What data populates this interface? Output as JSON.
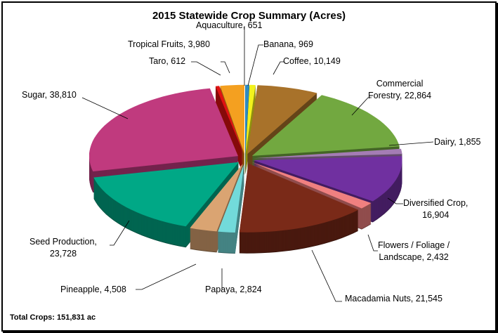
{
  "chart_data": {
    "type": "pie",
    "title": "2015 Statewide Crop Summary (Acres)",
    "total_label": "Total Crops: 151,831 ac",
    "slices": [
      {
        "label": "Aquaculture, 651",
        "name": "Aquaculture",
        "value": 651,
        "color": "#2e8bc0"
      },
      {
        "label": "Banana, 969",
        "name": "Banana",
        "value": 969,
        "color": "#f2f21c"
      },
      {
        "label": "Coffee, 10,149",
        "name": "Coffee",
        "value": 10149,
        "color": "#a8722a"
      },
      {
        "label": "Commercial Forestry, 22,864",
        "line1": "Commercial",
        "line2": "Forestry, 22,864",
        "name": "Commercial Forestry",
        "value": 22864,
        "color": "#72a840"
      },
      {
        "label": "Dairy, 1,855",
        "name": "Dairy",
        "value": 1855,
        "color": "#a47cb4"
      },
      {
        "label": "Diversified Crop, 16,904",
        "line1": "Diversified Crop,",
        "line2": "16,904",
        "name": "Diversified Crop",
        "value": 16904,
        "color": "#7030a0"
      },
      {
        "label": "Flowers / Foliage / Landscape, 2,432",
        "line1": "Flowers / Foliage /",
        "line2": "Landscape, 2,432",
        "name": "Flowers / Foliage / Landscape",
        "value": 2432,
        "color": "#f08080"
      },
      {
        "label": "Macadamia Nuts, 21,545",
        "name": "Macadamia Nuts",
        "value": 21545,
        "color": "#7a2a18"
      },
      {
        "label": "Papaya, 2,824",
        "name": "Papaya",
        "value": 2824,
        "color": "#72dada"
      },
      {
        "label": "Pineapple, 4,508",
        "name": "Pineapple",
        "value": 4508,
        "color": "#daa472"
      },
      {
        "label": "Seed Production, 23,728",
        "line1": "Seed Production,",
        "line2": "23,728",
        "name": "Seed Production",
        "value": 23728,
        "color": "#00a886"
      },
      {
        "label": "Sugar, 38,810",
        "name": "Sugar",
        "value": 38810,
        "color": "#c03a7e"
      },
      {
        "label": "Taro, 612",
        "name": "Taro",
        "value": 612,
        "color": "#e01212"
      },
      {
        "label": "Tropical Fruits, 3,980",
        "name": "Tropical Fruits",
        "value": 3980,
        "color": "#f4a020"
      }
    ]
  }
}
